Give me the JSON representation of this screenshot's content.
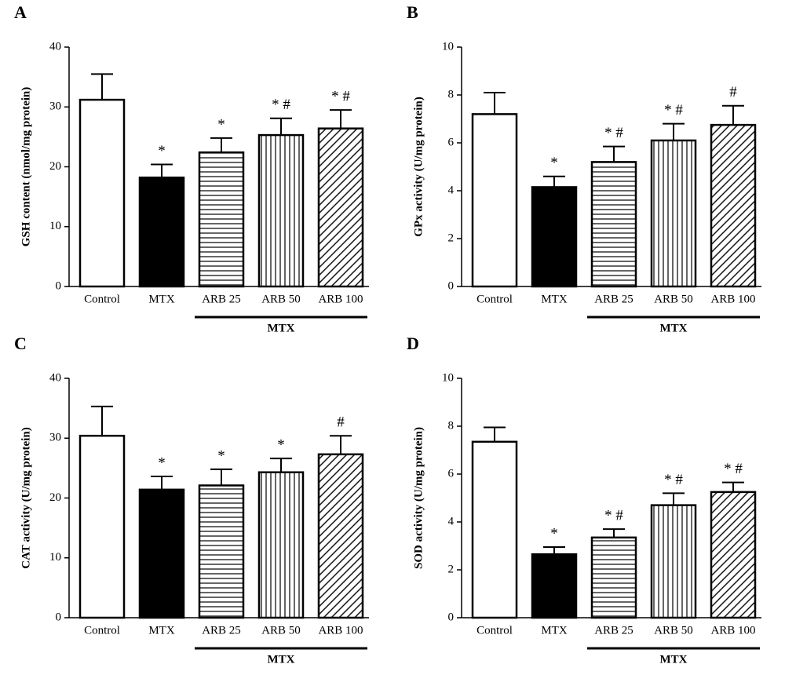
{
  "chart_data": [
    {
      "type": "bar",
      "panel": "A",
      "ylabel": "GSH content (nmol/mg protein)",
      "categories": [
        "Control",
        "MTX",
        "ARB 25",
        "ARB 50",
        "ARB 100"
      ],
      "values": [
        31.2,
        18.2,
        22.4,
        25.3,
        26.4
      ],
      "errors": [
        4.3,
        2.2,
        2.4,
        2.8,
        3.1
      ],
      "significance": [
        null,
        "*",
        "*",
        "* #",
        "* #"
      ],
      "patterns": [
        "none",
        "solid",
        "horizontal",
        "vertical",
        "diagonal"
      ],
      "group_label": "MTX",
      "group_from": 2,
      "ylim": [
        0,
        40
      ],
      "yticks": [
        0,
        10,
        20,
        30,
        40
      ]
    },
    {
      "type": "bar",
      "panel": "B",
      "ylabel": "GPx activity (U/mg protein)",
      "categories": [
        "Control",
        "MTX",
        "ARB 25",
        "ARB 50",
        "ARB 100"
      ],
      "values": [
        7.2,
        4.15,
        5.2,
        6.1,
        6.75
      ],
      "errors": [
        0.9,
        0.45,
        0.65,
        0.7,
        0.8
      ],
      "significance": [
        null,
        "*",
        "* #",
        "* #",
        "#"
      ],
      "patterns": [
        "none",
        "solid",
        "horizontal",
        "vertical",
        "diagonal"
      ],
      "group_label": "MTX",
      "group_from": 2,
      "ylim": [
        0,
        10
      ],
      "yticks": [
        0,
        2,
        4,
        6,
        8,
        10
      ]
    },
    {
      "type": "bar",
      "panel": "C",
      "ylabel": "CAT activity (U/mg protein)",
      "categories": [
        "Control",
        "MTX",
        "ARB 25",
        "ARB 50",
        "ARB 100"
      ],
      "values": [
        30.4,
        21.4,
        22.1,
        24.3,
        27.3
      ],
      "errors": [
        4.9,
        2.2,
        2.7,
        2.3,
        3.1
      ],
      "significance": [
        null,
        "*",
        "*",
        "*",
        "#"
      ],
      "patterns": [
        "none",
        "solid",
        "horizontal",
        "vertical",
        "diagonal"
      ],
      "group_label": "MTX",
      "group_from": 2,
      "ylim": [
        0,
        40
      ],
      "yticks": [
        0,
        10,
        20,
        30,
        40
      ]
    },
    {
      "type": "bar",
      "panel": "D",
      "ylabel": "SOD activity (U/mg protein)",
      "categories": [
        "Control",
        "MTX",
        "ARB 25",
        "ARB 50",
        "ARB 100"
      ],
      "values": [
        7.35,
        2.65,
        3.35,
        4.7,
        5.25
      ],
      "errors": [
        0.6,
        0.3,
        0.35,
        0.5,
        0.4
      ],
      "significance": [
        null,
        "*",
        "* #",
        "* #",
        "* #"
      ],
      "patterns": [
        "none",
        "solid",
        "horizontal",
        "vertical",
        "diagonal"
      ],
      "group_label": "MTX",
      "group_from": 2,
      "ylim": [
        0,
        10
      ],
      "yticks": [
        0,
        2,
        4,
        6,
        8,
        10
      ]
    }
  ]
}
